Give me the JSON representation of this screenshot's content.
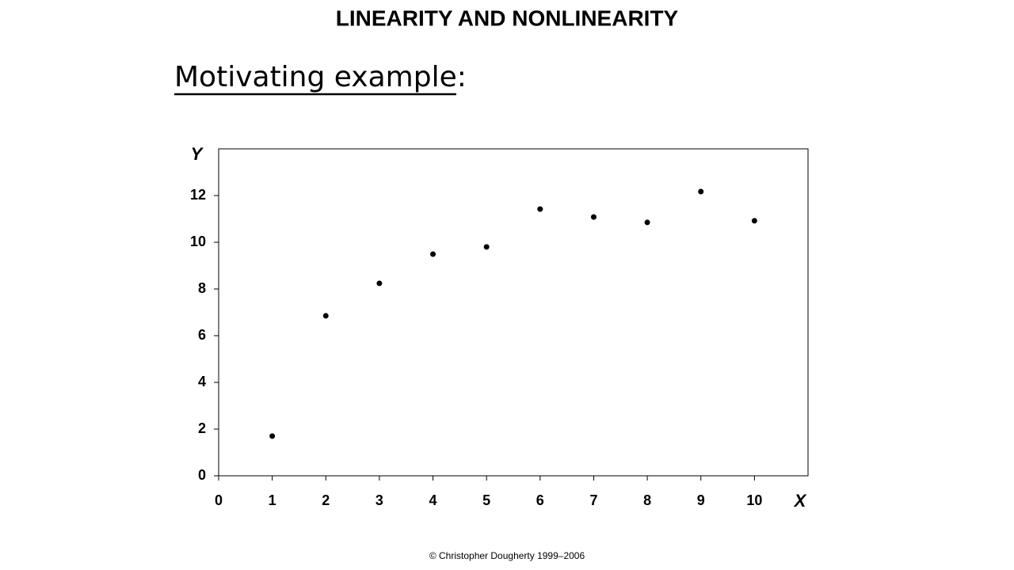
{
  "header": {
    "title": "LINEARITY AND NONLINEARITY",
    "subtitle": "Motivating example:"
  },
  "chart_data": {
    "type": "scatter",
    "xlabel": "X",
    "ylabel": "Y",
    "x": [
      1,
      2,
      3,
      4,
      5,
      6,
      7,
      8,
      9,
      10
    ],
    "values": [
      1.7,
      6.85,
      8.24,
      9.49,
      9.8,
      11.42,
      11.08,
      10.85,
      12.17,
      10.92
    ],
    "color": "#000000",
    "xlim": [
      0,
      11
    ],
    "xticks": [
      0,
      1,
      2,
      3,
      4,
      5,
      6,
      7,
      8,
      9,
      10
    ],
    "ylim": [
      0,
      14
    ],
    "yticks": [
      0,
      2,
      4,
      6,
      8,
      10,
      12
    ],
    "grid": false
  },
  "footer": "© Christopher Dougherty 1999–2006"
}
